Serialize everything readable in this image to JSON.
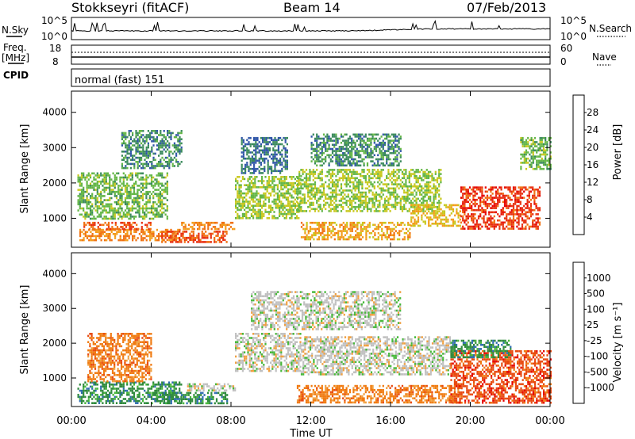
{
  "header": {
    "station": "Stokkseyri (fitACF)",
    "beam": "Beam 14",
    "date": "07/Feb/2013"
  },
  "nsky_panel": {
    "left_label": "N.Sky",
    "left_ticks": [
      "10^5",
      "10^0"
    ],
    "right_ticks": [
      "10^5",
      "10^0"
    ],
    "right_label": "N.Search"
  },
  "freq_panel": {
    "left_label_1": "Freq.",
    "left_label_2": "[MHz]",
    "left_ticks": [
      "18",
      "8"
    ],
    "right_ticks": [
      "60",
      "0"
    ],
    "right_label": "Nave"
  },
  "cpid_panel": {
    "left_label": "CPID",
    "mode_text": "normal (fast) 151"
  },
  "x_axis": {
    "ticks": [
      "00:00",
      "04:00",
      "08:00",
      "12:00",
      "16:00",
      "20:00",
      "00:00"
    ],
    "label": "Time UT"
  },
  "power_panel": {
    "ylabel": "Slant Range [km]",
    "yticks": [
      "4000",
      "3000",
      "2000",
      "1000"
    ],
    "colorbar_label": "Power [dB]",
    "colorbar_ticks": [
      "28",
      "24",
      "20",
      "16",
      "12",
      "8",
      "4"
    ],
    "colors": [
      "#0a1fd8",
      "#2f55a8",
      "#3b8a5c",
      "#63b646",
      "#c8c81e",
      "#f39c1a",
      "#f07010",
      "#e83010",
      "#e60000"
    ]
  },
  "velocity_panel": {
    "ylabel": "Slant Range [km]",
    "yticks": [
      "4000",
      "3000",
      "2000",
      "1000"
    ],
    "colorbar_label": "Velocity [m s⁻¹]",
    "colorbar_ticks": [
      "1000",
      "500",
      "100",
      "25",
      "-25",
      "-100",
      "-500",
      "-1000"
    ],
    "colors": [
      "#1a2aa8",
      "#2d6cb0",
      "#2f8a3c",
      "#47b83a",
      "#c0c0c0",
      "#f0a040",
      "#f07a10",
      "#e84a10",
      "#e60000"
    ]
  },
  "chart_data": {
    "type": "heatmap",
    "title": "Stokkseyri (fitACF)  Beam 14  07/Feb/2013",
    "xlabel": "Time UT",
    "ylabel": "Slant Range [km]",
    "xlim_hours": [
      0,
      24
    ],
    "ylim_km": [
      180,
      4600
    ],
    "power_bands": [
      {
        "t0": 0.4,
        "t1": 5.4,
        "r0": 350,
        "r1": 700,
        "db": 22
      },
      {
        "t0": 0.6,
        "t1": 4.0,
        "r0": 700,
        "r1": 900,
        "db": 26
      },
      {
        "t0": 0.3,
        "t1": 4.8,
        "r0": 1000,
        "r1": 2300,
        "db": 12
      },
      {
        "t0": 2.5,
        "t1": 5.5,
        "r0": 2400,
        "r1": 3500,
        "db": 8
      },
      {
        "t0": 4.5,
        "t1": 7.8,
        "r0": 300,
        "r1": 650,
        "db": 26
      },
      {
        "t0": 5.5,
        "t1": 8.2,
        "r0": 700,
        "r1": 900,
        "db": 22
      },
      {
        "t0": 8.2,
        "t1": 11.5,
        "r0": 1000,
        "r1": 2200,
        "db": 14
      },
      {
        "t0": 8.5,
        "t1": 10.8,
        "r0": 2300,
        "r1": 3300,
        "db": 6
      },
      {
        "t0": 11.3,
        "t1": 18.5,
        "r0": 1200,
        "r1": 2400,
        "db": 14
      },
      {
        "t0": 11.5,
        "t1": 17.0,
        "r0": 400,
        "r1": 900,
        "db": 20
      },
      {
        "t0": 12.0,
        "t1": 16.5,
        "r0": 2500,
        "r1": 3400,
        "db": 8
      },
      {
        "t0": 17.0,
        "t1": 19.5,
        "r0": 800,
        "r1": 1400,
        "db": 18
      },
      {
        "t0": 19.5,
        "t1": 23.5,
        "r0": 700,
        "r1": 1900,
        "db": 28
      },
      {
        "t0": 22.5,
        "t1": 24.0,
        "r0": 2400,
        "r1": 3300,
        "db": 12
      }
    ],
    "velocity_bands": [
      {
        "t0": 0.3,
        "t1": 5.5,
        "r0": 300,
        "r1": 900,
        "v": 120
      },
      {
        "t0": 0.8,
        "t1": 4.0,
        "r0": 900,
        "r1": 2300,
        "v": -150
      },
      {
        "t0": 4.0,
        "t1": 7.8,
        "r0": 300,
        "r1": 600,
        "v": 150
      },
      {
        "t0": 5.8,
        "t1": 8.2,
        "r0": 650,
        "r1": 850,
        "v": 0
      },
      {
        "t0": 8.2,
        "t1": 11.5,
        "r0": 1200,
        "r1": 2300,
        "v": 0
      },
      {
        "t0": 9.0,
        "t1": 16.5,
        "r0": 2400,
        "r1": 3500,
        "v": 0
      },
      {
        "t0": 11.5,
        "t1": 19.0,
        "r0": 1100,
        "r1": 2200,
        "v": 0
      },
      {
        "t0": 11.3,
        "t1": 19.5,
        "r0": 300,
        "r1": 800,
        "v": -200
      },
      {
        "t0": 19.0,
        "t1": 24.0,
        "r0": 300,
        "r1": 1800,
        "v": -350
      },
      {
        "t0": 19.0,
        "t1": 22.0,
        "r0": 1600,
        "r1": 2100,
        "v": 150
      }
    ]
  }
}
